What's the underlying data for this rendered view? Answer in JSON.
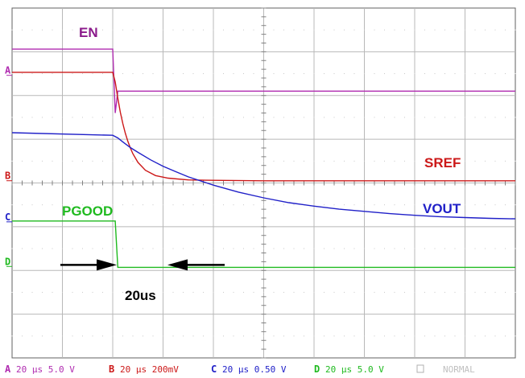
{
  "chart_data": {
    "type": "line",
    "title": "",
    "xlabel": "",
    "ylabel": "",
    "grid": true,
    "time_per_div_us": 20,
    "x_range_us": [
      0,
      200
    ],
    "x_unit": "us",
    "y_unit": "div",
    "y_range_div": [
      -4,
      4
    ],
    "series": [
      {
        "name": "EN",
        "key": "A",
        "color": "#b02cb0",
        "scale": "5.0 V/div",
        "marker_div": 2.59,
        "x": [
          0,
          40,
          41,
          42,
          200
        ],
        "values": [
          3.06,
          3.06,
          1.6,
          2.1,
          2.1
        ]
      },
      {
        "name": "SREF",
        "key": "B",
        "color": "#cc1818",
        "scale": "200mV/div",
        "marker_div": 0.18,
        "x": [
          0,
          40,
          41,
          42,
          43,
          44,
          45,
          46,
          47,
          48,
          50,
          53,
          57,
          62,
          70,
          80,
          100,
          130,
          160,
          200
        ],
        "values": [
          2.53,
          2.53,
          2.31,
          1.94,
          1.62,
          1.36,
          1.14,
          0.95,
          0.8,
          0.67,
          0.47,
          0.29,
          0.17,
          0.11,
          0.07,
          0.06,
          0.05,
          0.05,
          0.05,
          0.05
        ]
      },
      {
        "name": "VOUT",
        "key": "C",
        "color": "#2020c8",
        "scale": "0.50 V/div",
        "marker_div": -0.76,
        "x": [
          0,
          40,
          42,
          44,
          47,
          50,
          55,
          60,
          65,
          70,
          80,
          90,
          100,
          110,
          120,
          130,
          140,
          150,
          160,
          170,
          180,
          190,
          200
        ],
        "values": [
          1.15,
          1.09,
          1.03,
          0.94,
          0.81,
          0.7,
          0.53,
          0.38,
          0.26,
          0.14,
          -0.05,
          -0.21,
          -0.34,
          -0.45,
          -0.53,
          -0.6,
          -0.65,
          -0.7,
          -0.74,
          -0.77,
          -0.79,
          -0.81,
          -0.82
        ]
      },
      {
        "name": "PGOOD",
        "key": "D",
        "color": "#1fba1f",
        "scale": "5.0 V/div",
        "marker_div": -1.78,
        "x": [
          0,
          41,
          42,
          200
        ],
        "values": [
          -0.87,
          -0.87,
          -1.93,
          -1.93
        ]
      }
    ],
    "annotations": [
      {
        "text": "EN",
        "color": "#8b1a8b"
      },
      {
        "text": "SREF",
        "color": "#cc1818"
      },
      {
        "text": "VOUT",
        "color": "#2020c8"
      },
      {
        "text": "PGOOD",
        "color": "#1fba1f"
      },
      {
        "text": "20us",
        "color": "#000000"
      }
    ]
  },
  "footer": {
    "channels": [
      {
        "key": "A",
        "text": "20 µs 5.0 V",
        "color": "#b02cb0"
      },
      {
        "key": "B",
        "text": "20 µs 200mV",
        "color": "#cc1818"
      },
      {
        "key": "C",
        "text": "20 µs 0.50 V",
        "color": "#2020c8"
      },
      {
        "key": "D",
        "text": "20 µs 5.0 V",
        "color": "#1fba1f"
      }
    ],
    "mode": "NORMAL"
  }
}
